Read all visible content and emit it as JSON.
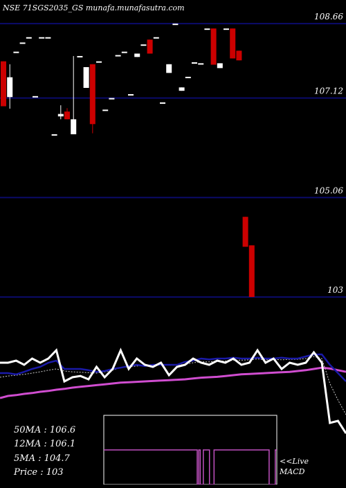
{
  "chart_data": {
    "type": "candlestick",
    "title": "NSE 71SGS2035_GS munafa.munafasutra.com",
    "price_levels": [
      108.66,
      107.12,
      105.06,
      103
    ],
    "price_level_labels": [
      "108.66",
      "107.12",
      "105.06",
      "103"
    ],
    "ylim": [
      102.7,
      109.15
    ],
    "candles": [
      {
        "o": 107.88,
        "h": 107.88,
        "l": 106.95,
        "c": 106.95
      },
      {
        "o": 107.14,
        "h": 107.82,
        "l": 106.9,
        "c": 107.55
      },
      {
        "o": 108.08,
        "h": 108.08,
        "l": 108.08,
        "c": 108.08
      },
      {
        "o": 108.27,
        "h": 108.27,
        "l": 108.27,
        "c": 108.27
      },
      {
        "o": 108.38,
        "h": 108.38,
        "l": 108.38,
        "c": 108.38
      },
      {
        "o": 107.16,
        "h": 107.16,
        "l": 107.16,
        "c": 107.16
      },
      {
        "o": 108.38,
        "h": 108.38,
        "l": 108.38,
        "c": 108.38
      },
      {
        "o": 108.38,
        "h": 108.38,
        "l": 108.38,
        "c": 108.38
      },
      {
        "o": 106.37,
        "h": 106.37,
        "l": 106.37,
        "c": 106.37
      },
      {
        "o": 106.74,
        "h": 106.97,
        "l": 106.68,
        "c": 106.79
      },
      {
        "o": 106.84,
        "h": 106.91,
        "l": 106.68,
        "c": 106.68
      },
      {
        "o": 106.37,
        "h": 107.99,
        "l": 106.37,
        "c": 106.68
      },
      {
        "o": 107.99,
        "h": 107.99,
        "l": 107.99,
        "c": 107.99
      },
      {
        "o": 107.33,
        "h": 107.76,
        "l": 107.33,
        "c": 107.76
      },
      {
        "o": 107.82,
        "h": 107.82,
        "l": 106.39,
        "c": 106.58
      },
      {
        "o": 107.88,
        "h": 107.88,
        "l": 107.88,
        "c": 107.88
      },
      {
        "o": 106.88,
        "h": 106.88,
        "l": 106.88,
        "c": 106.88
      },
      {
        "o": 107.12,
        "h": 107.12,
        "l": 107.12,
        "c": 107.12
      },
      {
        "o": 108.01,
        "h": 108.01,
        "l": 108.01,
        "c": 108.01
      },
      {
        "o": 108.08,
        "h": 108.08,
        "l": 108.08,
        "c": 108.08
      },
      {
        "o": 107.2,
        "h": 107.2,
        "l": 107.2,
        "c": 107.2
      },
      {
        "o": 107.97,
        "h": 108.04,
        "l": 107.97,
        "c": 108.04
      },
      {
        "o": 108.23,
        "h": 108.23,
        "l": 108.23,
        "c": 108.23
      },
      {
        "o": 108.33,
        "h": 108.33,
        "l": 108.04,
        "c": 108.04
      },
      {
        "o": 108.38,
        "h": 108.38,
        "l": 108.38,
        "c": 108.38
      },
      {
        "o": 107.03,
        "h": 107.03,
        "l": 107.03,
        "c": 107.03
      },
      {
        "o": 107.64,
        "h": 107.82,
        "l": 107.64,
        "c": 107.82
      },
      {
        "o": 108.66,
        "h": 108.66,
        "l": 108.66,
        "c": 108.66
      },
      {
        "o": 107.27,
        "h": 107.34,
        "l": 107.27,
        "c": 107.34
      },
      {
        "o": 107.56,
        "h": 107.56,
        "l": 107.56,
        "c": 107.56
      },
      {
        "o": 107.86,
        "h": 107.86,
        "l": 107.86,
        "c": 107.86
      },
      {
        "o": 107.84,
        "h": 107.84,
        "l": 107.84,
        "c": 107.84
      },
      {
        "o": 108.56,
        "h": 108.56,
        "l": 108.56,
        "c": 108.56
      },
      {
        "o": 108.56,
        "h": 108.56,
        "l": 107.81,
        "c": 107.81
      },
      {
        "o": 107.74,
        "h": 107.84,
        "l": 107.74,
        "c": 107.84
      },
      {
        "o": 108.56,
        "h": 108.56,
        "l": 108.56,
        "c": 108.56
      },
      {
        "o": 108.56,
        "h": 108.56,
        "l": 107.94,
        "c": 107.94
      },
      {
        "o": 108.1,
        "h": 108.1,
        "l": 107.9,
        "c": 107.9
      },
      {
        "o": 104.66,
        "h": 104.66,
        "l": 104.04,
        "c": 104.04
      },
      {
        "o": 104.07,
        "h": 104.07,
        "l": 103.0,
        "c": 103.0
      }
    ],
    "legend": {
      "ma50": "50MA : 106.6",
      "ma12": "12MA : 106.1",
      "ma5": "5MA : 104.7",
      "price": "Price   : 103"
    },
    "macd_label": "<<Live MACD",
    "colors": {
      "up": "#ffffff",
      "down": "#cc0000",
      "grid": "#0b0b6b",
      "ma_white": "#ffffff",
      "ma_blue": "#1a1aa8",
      "ma_pink": "#d04dd0",
      "ma_dash": "#cccccc",
      "macd_line": "#c050c0"
    },
    "ma_panel": {
      "white": [
        0.4,
        0.4,
        0.35,
        0.45,
        0.3,
        0.4,
        0.3,
        0.1,
        0.85,
        0.75,
        0.72,
        0.8,
        0.5,
        0.75,
        0.55,
        0.1,
        0.55,
        0.3,
        0.45,
        0.5,
        0.4,
        0.7,
        0.5,
        0.45,
        0.3,
        0.4,
        0.45,
        0.35,
        0.4,
        0.3,
        0.45,
        0.4,
        0.1,
        0.4,
        0.3,
        0.55,
        0.4,
        0.45,
        0.4,
        0.15,
        0.4,
        1.85,
        1.8,
        2.1
      ],
      "blue": [
        0.65,
        0.65,
        0.68,
        0.62,
        0.55,
        0.5,
        0.4,
        0.35,
        0.55,
        0.55,
        0.55,
        0.58,
        0.62,
        0.6,
        0.55,
        0.52,
        0.48,
        0.45,
        0.48,
        0.45,
        0.45,
        0.45,
        0.45,
        0.38,
        0.35,
        0.3,
        0.32,
        0.3,
        0.3,
        0.28,
        0.3,
        0.3,
        0.28,
        0.3,
        0.3,
        0.28,
        0.3,
        0.3,
        0.25,
        0.2,
        0.2,
        0.45,
        0.65,
        0.85
      ],
      "pink": [
        1.25,
        1.2,
        1.18,
        1.15,
        1.13,
        1.1,
        1.08,
        1.05,
        1.03,
        1.0,
        0.98,
        0.96,
        0.94,
        0.92,
        0.9,
        0.88,
        0.87,
        0.86,
        0.85,
        0.84,
        0.83,
        0.82,
        0.81,
        0.8,
        0.78,
        0.76,
        0.75,
        0.74,
        0.72,
        0.7,
        0.68,
        0.67,
        0.66,
        0.65,
        0.64,
        0.63,
        0.62,
        0.6,
        0.58,
        0.55,
        0.52,
        0.54,
        0.58,
        0.62
      ],
      "dashed": [
        0.75,
        0.72,
        0.7,
        0.68,
        0.65,
        0.62,
        0.58,
        0.55,
        0.6,
        0.62,
        0.63,
        0.64,
        0.65,
        0.62,
        0.58,
        0.52,
        0.5,
        0.48,
        0.47,
        0.46,
        0.45,
        0.46,
        0.46,
        0.44,
        0.4,
        0.38,
        0.38,
        0.36,
        0.36,
        0.34,
        0.34,
        0.33,
        0.31,
        0.33,
        0.32,
        0.33,
        0.32,
        0.32,
        0.3,
        0.25,
        0.3,
        0.9,
        1.3,
        1.65
      ]
    },
    "macd_states": [
      0,
      0,
      0,
      0,
      0,
      0,
      0,
      0,
      0,
      0,
      0,
      0,
      0,
      0,
      0,
      0,
      0,
      0,
      0,
      0,
      0,
      0,
      0,
      0,
      0,
      0,
      0,
      0,
      0,
      0,
      0,
      0,
      0,
      0,
      0,
      0,
      0,
      0,
      0,
      0,
      0,
      0,
      0,
      0,
      0,
      0,
      0,
      0,
      0,
      0,
      0,
      0,
      0,
      0,
      0,
      0,
      0,
      0,
      0,
      0,
      0,
      1,
      0,
      1,
      1,
      0,
      0,
      0,
      0,
      1,
      1,
      1,
      0,
      0,
      0,
      0,
      0,
      0,
      0,
      0,
      0,
      0,
      0,
      0,
      0,
      0,
      0,
      0,
      0,
      0,
      0,
      0,
      0,
      0,
      0,
      0,
      0,
      0,
      0,
      0,
      0,
      0,
      0,
      0,
      0,
      0,
      0,
      0,
      1,
      1,
      1,
      1,
      0,
      0
    ]
  }
}
